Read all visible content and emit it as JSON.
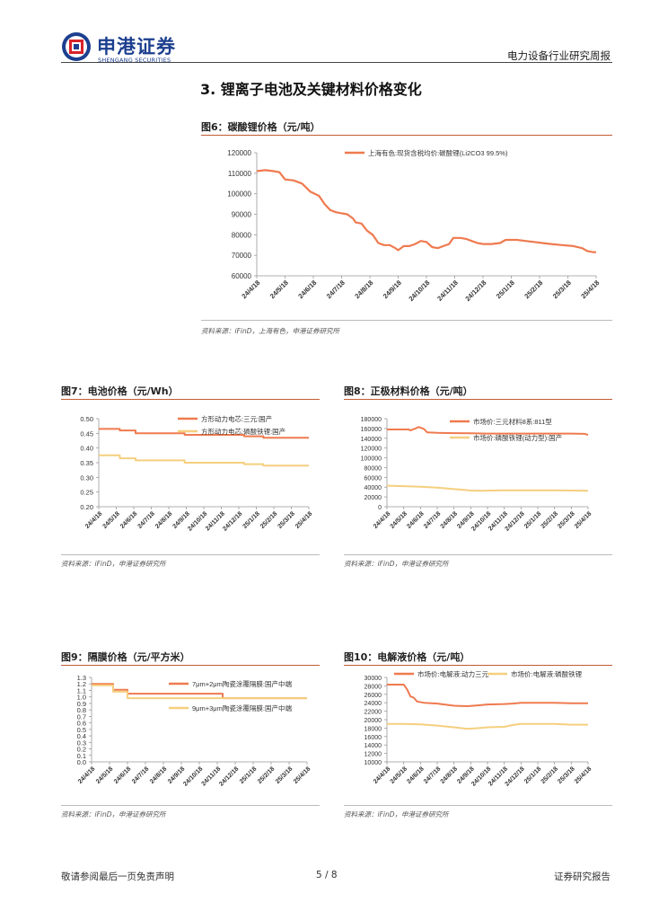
{
  "header": {
    "logo_cn": "申港证券",
    "logo_en": "SHENGANG SECURITIES",
    "report_type": "电力设备行业研究周报"
  },
  "section_title": "3. 锂离子电池及关键材料价格变化",
  "colors": {
    "orange": "#ef7a4f",
    "yellow": "#f5cf7f",
    "brand_blue": "#1c3f8f",
    "brand_red": "#d8232a",
    "rule": "#c35b33"
  },
  "figures": [
    {
      "id": "fig6",
      "title": "图6：碳酸锂价格（元/吨）",
      "source": "资料来源：iFinD，上海有色，申港证券研究所",
      "chart_data": {
        "type": "line",
        "title": "图6：碳酸锂价格（元/吨）",
        "x_ticks": [
          "24/4/18",
          "24/5/18",
          "24/6/18",
          "24/7/18",
          "24/8/18",
          "24/9/18",
          "24/10/18",
          "24/11/18",
          "24/12/18",
          "25/1/18",
          "25/2/18",
          "25/3/18",
          "25/4/18"
        ],
        "y_ticks": [
          "120000",
          "110000",
          "100000",
          "90000",
          "80000",
          "70000",
          "60000"
        ],
        "ylim": [
          60000,
          120000
        ],
        "series": [
          {
            "name": "上海有色:现货含税均价:碳酸锂(Li2CO3 99.5%)",
            "color": "#ef7a4f",
            "points": [
              [
                0,
                111000
              ],
              [
                0.3,
                111500
              ],
              [
                0.6,
                111000
              ],
              [
                0.8,
                110500
              ],
              [
                1.0,
                107000
              ],
              [
                1.3,
                106500
              ],
              [
                1.6,
                105000
              ],
              [
                1.9,
                101000
              ],
              [
                2.2,
                99000
              ],
              [
                2.4,
                95000
              ],
              [
                2.6,
                92000
              ],
              [
                2.8,
                91000
              ],
              [
                3.0,
                90500
              ],
              [
                3.2,
                90000
              ],
              [
                3.4,
                88000
              ],
              [
                3.5,
                86000
              ],
              [
                3.7,
                85500
              ],
              [
                3.9,
                82000
              ],
              [
                4.1,
                80000
              ],
              [
                4.3,
                76000
              ],
              [
                4.5,
                75000
              ],
              [
                4.7,
                75000
              ],
              [
                4.9,
                73500
              ],
              [
                5.0,
                72500
              ],
              [
                5.2,
                74500
              ],
              [
                5.4,
                74500
              ],
              [
                5.6,
                75500
              ],
              [
                5.8,
                77000
              ],
              [
                6.0,
                76500
              ],
              [
                6.2,
                74000
              ],
              [
                6.4,
                73500
              ],
              [
                6.6,
                74500
              ],
              [
                6.8,
                75500
              ],
              [
                6.95,
                78500
              ],
              [
                7.2,
                78500
              ],
              [
                7.4,
                78000
              ],
              [
                7.6,
                77000
              ],
              [
                7.8,
                76000
              ],
              [
                8.0,
                75500
              ],
              [
                8.3,
                75500
              ],
              [
                8.6,
                76000
              ],
              [
                8.8,
                77500
              ],
              [
                9.2,
                77500
              ],
              [
                9.5,
                77000
              ],
              [
                9.8,
                76500
              ],
              [
                10.1,
                76000
              ],
              [
                10.4,
                75500
              ],
              [
                10.8,
                75000
              ],
              [
                11.2,
                74500
              ],
              [
                11.5,
                73500
              ],
              [
                11.7,
                72000
              ],
              [
                11.9,
                71500
              ],
              [
                12.0,
                71500
              ]
            ]
          }
        ]
      }
    },
    {
      "id": "fig7",
      "title": "图7：电池价格（元/Wh）",
      "source": "资料来源：iFinD，申港证券研究所",
      "chart_data": {
        "type": "line",
        "title": "图7：电池价格（元/Wh）",
        "x_ticks": [
          "24/4/18",
          "24/5/18",
          "24/6/18",
          "24/7/18",
          "24/8/18",
          "24/9/18",
          "24/10/18",
          "24/11/18",
          "24/12/18",
          "25/1/18",
          "25/2/18",
          "25/3/18",
          "25/4/18"
        ],
        "y_ticks": [
          "0.50",
          "0.45",
          "0.40",
          "0.35",
          "0.30",
          "0.25",
          "0.20"
        ],
        "ylim": [
          0.2,
          0.5
        ],
        "series": [
          {
            "name": "方形动力电芯:三元:国产",
            "color": "#ef7a4f",
            "points": [
              [
                0,
                0.465
              ],
              [
                1.2,
                0.465
              ],
              [
                1.2,
                0.46
              ],
              [
                2.1,
                0.46
              ],
              [
                2.1,
                0.45
              ],
              [
                4.9,
                0.45
              ],
              [
                4.9,
                0.445
              ],
              [
                8.3,
                0.445
              ],
              [
                8.3,
                0.44
              ],
              [
                9.4,
                0.44
              ],
              [
                9.4,
                0.435
              ],
              [
                12,
                0.435
              ]
            ]
          },
          {
            "name": "方形动力电芯:磷酸铁锂:国产",
            "color": "#f5cf7f",
            "points": [
              [
                0,
                0.375
              ],
              [
                1.2,
                0.375
              ],
              [
                1.2,
                0.365
              ],
              [
                2.1,
                0.365
              ],
              [
                2.1,
                0.358
              ],
              [
                4.9,
                0.358
              ],
              [
                4.9,
                0.35
              ],
              [
                8.3,
                0.35
              ],
              [
                8.3,
                0.345
              ],
              [
                9.4,
                0.345
              ],
              [
                9.4,
                0.34
              ],
              [
                12,
                0.34
              ]
            ]
          }
        ]
      }
    },
    {
      "id": "fig8",
      "title": "图8：正极材料价格（元/吨）",
      "source": "资料来源：iFinD，申港证券研究所",
      "chart_data": {
        "type": "line",
        "title": "图8：正极材料价格（元/吨）",
        "x_ticks": [
          "24/4/18",
          "24/5/18",
          "24/6/18",
          "24/7/18",
          "24/8/18",
          "24/9/18",
          "24/10/18",
          "24/11/18",
          "24/12/18",
          "25/1/18",
          "25/2/18",
          "25/3/18",
          "25/4/18"
        ],
        "y_ticks": [
          "180000",
          "160000",
          "140000",
          "120000",
          "100000",
          "80000",
          "60000",
          "40000",
          "20000",
          "0"
        ],
        "ylim": [
          0,
          180000
        ],
        "series": [
          {
            "name": "市场价:三元材料8系:811型",
            "color": "#ef7a4f",
            "points": [
              [
                0,
                158000
              ],
              [
                1.3,
                158000
              ],
              [
                1.4,
                156000
              ],
              [
                1.7,
                160000
              ],
              [
                1.9,
                163000
              ],
              [
                2.2,
                159000
              ],
              [
                2.4,
                152000
              ],
              [
                3.0,
                151000
              ],
              [
                4.0,
                150500
              ],
              [
                5.0,
                150000
              ],
              [
                6.0,
                149500
              ],
              [
                7.0,
                149500
              ],
              [
                8.0,
                149500
              ],
              [
                9.0,
                149500
              ],
              [
                10.0,
                149500
              ],
              [
                11.0,
                149500
              ],
              [
                11.8,
                149000
              ],
              [
                12,
                147000
              ]
            ]
          },
          {
            "name": "市场价:磷酸铁锂(动力型):国产",
            "color": "#f5cf7f",
            "points": [
              [
                0,
                43000
              ],
              [
                1.0,
                42000
              ],
              [
                2.0,
                41000
              ],
              [
                3.0,
                39000
              ],
              [
                4.0,
                36000
              ],
              [
                4.6,
                34500
              ],
              [
                5.0,
                33000
              ],
              [
                5.6,
                32500
              ],
              [
                6.2,
                33000
              ],
              [
                7.0,
                33500
              ],
              [
                8.0,
                33500
              ],
              [
                9.0,
                33500
              ],
              [
                10.0,
                33500
              ],
              [
                11.0,
                33000
              ],
              [
                12,
                32500
              ]
            ]
          }
        ]
      }
    },
    {
      "id": "fig9",
      "title": "图9：隔膜价格（元/平方米）",
      "source": "资料来源：iFinD，申港证券研究所",
      "chart_data": {
        "type": "line",
        "title": "图9：隔膜价格（元/平方米）",
        "x_ticks": [
          "24/4/18",
          "24/5/18",
          "24/6/18",
          "24/7/18",
          "24/8/18",
          "24/9/18",
          "24/10/18",
          "24/11/18",
          "24/12/18",
          "25/1/18",
          "25/2/18",
          "25/3/18",
          "25/4/18"
        ],
        "y_ticks": [
          "1.3",
          "1.2",
          "1.1",
          "1.0",
          "0.9",
          "0.8",
          "0.7",
          "0.6",
          "0.5",
          "0.4",
          "0.3",
          "0.2",
          "0.1",
          "0.0"
        ],
        "ylim": [
          0.0,
          1.3
        ],
        "series": [
          {
            "name": "7μm+2μm陶瓷涂覆隔膜:国产中端",
            "color": "#ef7a4f",
            "points": [
              [
                0,
                1.2
              ],
              [
                1.2,
                1.2
              ],
              [
                1.2,
                1.11
              ],
              [
                2.0,
                1.11
              ],
              [
                2.0,
                1.05
              ],
              [
                7.3,
                1.05
              ],
              [
                7.3,
                0.98
              ],
              [
                12,
                0.98
              ]
            ]
          },
          {
            "name": "9μm+3μm陶瓷涂覆隔膜:国产中端",
            "color": "#f5cf7f",
            "points": [
              [
                0,
                1.18
              ],
              [
                1.2,
                1.18
              ],
              [
                1.2,
                1.08
              ],
              [
                2.0,
                1.08
              ],
              [
                2.0,
                0.98
              ],
              [
                12,
                0.98
              ]
            ]
          }
        ]
      }
    },
    {
      "id": "fig10",
      "title": "图10：电解液价格（元/吨）",
      "source": "资料来源：iFinD，申港证券研究所",
      "chart_data": {
        "type": "line",
        "title": "图10：电解液价格（元/吨）",
        "x_ticks": [
          "24/4/18",
          "24/5/18",
          "24/6/18",
          "24/7/18",
          "24/8/18",
          "24/9/18",
          "24/10/18",
          "24/11/18",
          "24/12/18",
          "25/1/18",
          "25/2/18",
          "25/3/18",
          "25/4/18"
        ],
        "y_ticks": [
          "30000",
          "28000",
          "26000",
          "24000",
          "22000",
          "20000",
          "18000",
          "16000",
          "14000",
          "12000",
          "10000"
        ],
        "ylim": [
          10000,
          30000
        ],
        "series": [
          {
            "name": "市场价:电解液:动力三元",
            "color": "#ef7a4f",
            "points": [
              [
                0,
                28300
              ],
              [
                1.0,
                28300
              ],
              [
                1.2,
                27200
              ],
              [
                1.4,
                25500
              ],
              [
                1.6,
                25200
              ],
              [
                1.8,
                24300
              ],
              [
                2.2,
                24000
              ],
              [
                3.0,
                23800
              ],
              [
                4.0,
                23300
              ],
              [
                4.8,
                23200
              ],
              [
                5.5,
                23400
              ],
              [
                6.0,
                23600
              ],
              [
                7.0,
                23700
              ],
              [
                7.5,
                23800
              ],
              [
                8.0,
                24000
              ],
              [
                9.0,
                24000
              ],
              [
                10.0,
                24000
              ],
              [
                11.0,
                23900
              ],
              [
                12,
                23900
              ]
            ]
          },
          {
            "name": "市场价:电解液:磷酸铁锂",
            "color": "#f5cf7f",
            "points": [
              [
                0,
                19000
              ],
              [
                1.0,
                19000
              ],
              [
                2.0,
                18900
              ],
              [
                3.0,
                18600
              ],
              [
                4.0,
                18200
              ],
              [
                4.8,
                17800
              ],
              [
                5.5,
                18000
              ],
              [
                6.0,
                18200
              ],
              [
                7.0,
                18300
              ],
              [
                7.6,
                18800
              ],
              [
                8.0,
                19000
              ],
              [
                9.0,
                19000
              ],
              [
                10.0,
                19000
              ],
              [
                11.0,
                18800
              ],
              [
                12,
                18800
              ]
            ]
          }
        ]
      }
    }
  ],
  "footer": {
    "disclaimer": "敬请参阅最后一页免责声明",
    "page": "5 / 8",
    "report": "证券研究报告"
  }
}
